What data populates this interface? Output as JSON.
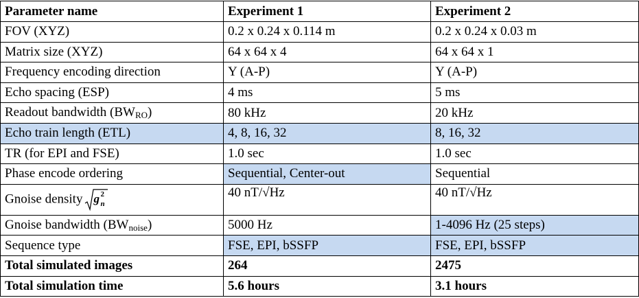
{
  "table": {
    "header": [
      "Parameter name",
      "Experiment 1",
      "Experiment 2"
    ],
    "rows": [
      [
        "FOV (XYZ)",
        "0.2 x 0.24 x 0.114 m",
        "0.2 x 0.24 x 0.03 m"
      ],
      [
        "Matrix size (XYZ)",
        "64 x 64 x 4",
        "64 x 64 x 1"
      ],
      [
        "Frequency encoding direction",
        "Y (A-P)",
        "Y (A-P)"
      ],
      [
        "Echo spacing (ESP)",
        "4 ms",
        "5 ms"
      ],
      [
        {
          "text": "Readout bandwidth (BW",
          "sub": "RO",
          "end": ")"
        },
        "80 kHz",
        "20 kHz"
      ],
      [
        "Echo train length (ETL)",
        "4, 8, 16, 32",
        "8, 16, 32"
      ],
      [
        "TR (for EPI and FSE)",
        "1.0 sec",
        "1.0 sec"
      ],
      [
        "Phase encode ordering",
        "Sequential, Center-out",
        "Sequential"
      ],
      [
        {
          "text": "Gnoise density",
          "formula": {
            "base": "g",
            "sub": "n",
            "sup": "2"
          }
        },
        "40 nT/√Hz",
        "40 nT/√Hz"
      ],
      [
        {
          "text": "Gnoise bandwidth (BW",
          "sub": "noise",
          "end": ")"
        },
        "5000 Hz",
        "1-4096 Hz (25 steps)"
      ],
      [
        "Sequence type",
        "FSE, EPI, bSSFP",
        "FSE, EPI, bSSFP"
      ],
      [
        "Total simulated images",
        "264",
        "2475"
      ],
      [
        "Total simulation time",
        "5.6 hours",
        "3.1 hours"
      ]
    ]
  }
}
